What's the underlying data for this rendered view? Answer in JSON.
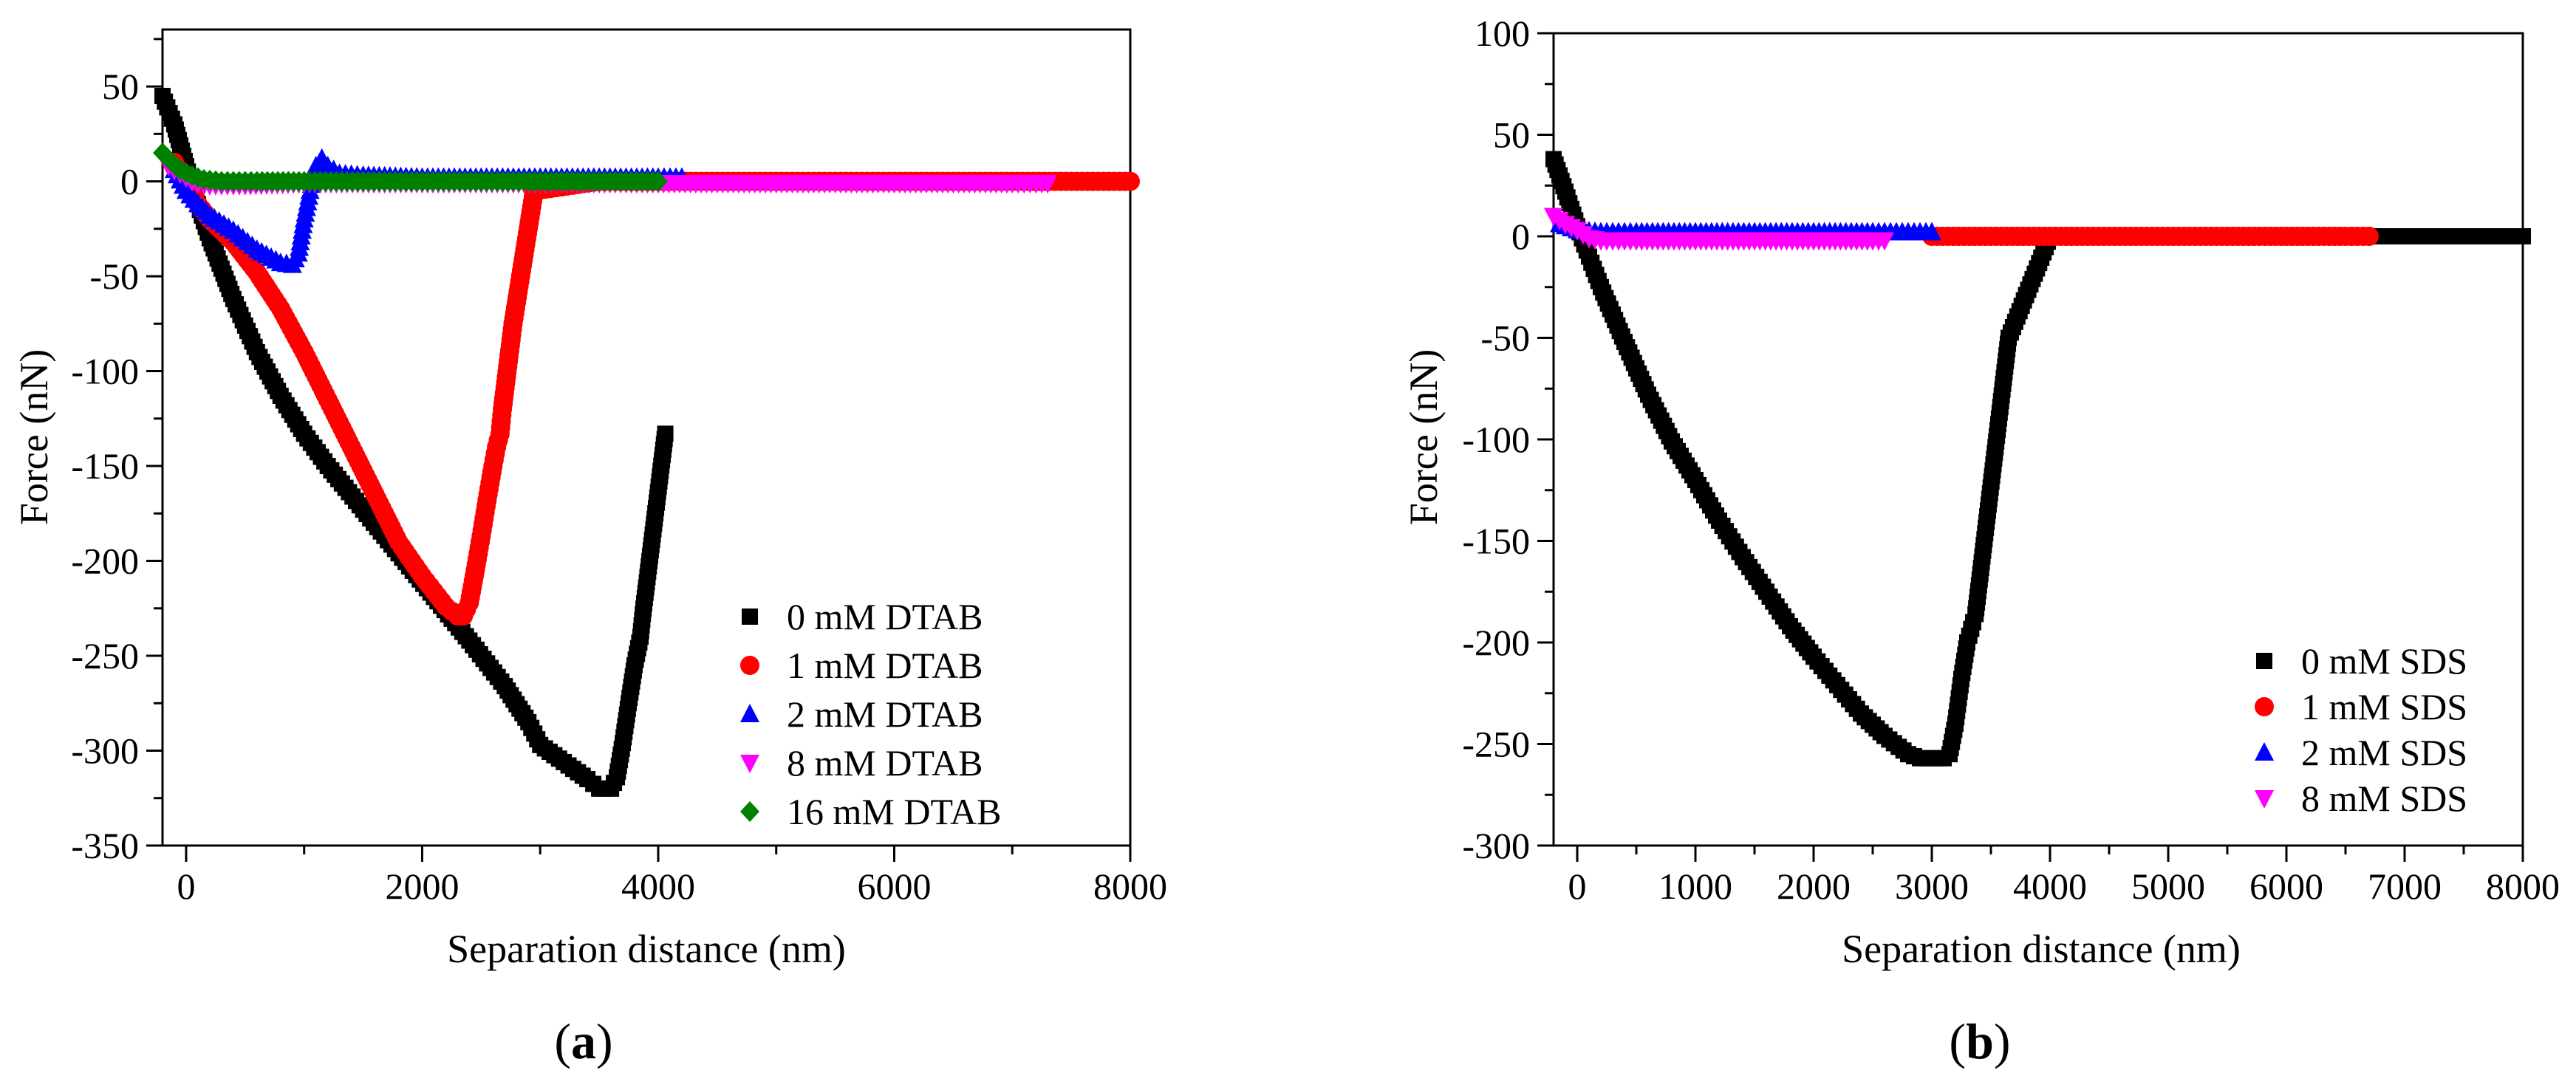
{
  "chart_data": [
    {
      "panel_label": "a",
      "type": "scatter",
      "xlabel": "Separation distance (nm)",
      "ylabel": "Force (nN)",
      "xlim": [
        -200,
        8000
      ],
      "ylim": [
        -350,
        80
      ],
      "xticks": [
        0,
        2000,
        4000,
        6000,
        8000
      ],
      "xtick_labels": [
        "0",
        "2000",
        "4000",
        "6000",
        "8000"
      ],
      "yticks": [
        50,
        0,
        -50,
        -100,
        -150,
        -200,
        -250,
        -300,
        -350
      ],
      "ytick_labels": [
        "50",
        "0",
        "-50",
        "-100",
        "-150",
        "-200",
        "-250",
        "-300",
        "-350"
      ],
      "legend_position": "bottom-right",
      "series": [
        {
          "name": "0 mM DTAB",
          "color": "#000000",
          "marker": "square",
          "points": [
            [
              -200,
              45
            ],
            [
              -100,
              30
            ],
            [
              0,
              8
            ],
            [
              100,
              -12
            ],
            [
              200,
              -30
            ],
            [
              400,
              -62
            ],
            [
              600,
              -90
            ],
            [
              800,
              -113
            ],
            [
              1000,
              -133
            ],
            [
              1200,
              -150
            ],
            [
              1500,
              -173
            ],
            [
              1800,
              -196
            ],
            [
              2100,
              -219
            ],
            [
              2400,
              -242
            ],
            [
              2700,
              -266
            ],
            [
              2900,
              -285
            ],
            [
              3000,
              -297
            ],
            [
              3200,
              -306
            ],
            [
              3400,
              -315
            ],
            [
              3500,
              -320
            ],
            [
              3600,
              -320
            ],
            [
              3650,
              -314
            ],
            [
              3700,
              -296
            ],
            [
              3750,
              -275
            ],
            [
              3800,
              -255
            ],
            [
              3850,
              -240
            ],
            [
              3870,
              -228
            ],
            [
              4060,
              -133
            ]
          ]
        },
        {
          "name": "1 mM DTAB",
          "color": "#ff0000",
          "marker": "circle",
          "points": [
            [
              -100,
              10
            ],
            [
              0,
              -2
            ],
            [
              100,
              -12
            ],
            [
              200,
              -20
            ],
            [
              400,
              -32
            ],
            [
              600,
              -48
            ],
            [
              800,
              -67
            ],
            [
              1000,
              -90
            ],
            [
              1200,
              -115
            ],
            [
              1400,
              -140
            ],
            [
              1600,
              -165
            ],
            [
              1800,
              -190
            ],
            [
              2000,
              -208
            ],
            [
              2100,
              -216
            ],
            [
              2200,
              -224
            ],
            [
              2300,
              -229
            ],
            [
              2350,
              -229
            ],
            [
              2400,
              -222
            ],
            [
              2450,
              -205
            ],
            [
              2500,
              -187
            ],
            [
              2550,
              -168
            ],
            [
              2600,
              -150
            ],
            [
              2630,
              -140
            ],
            [
              2660,
              -133
            ],
            [
              2680,
              -120
            ],
            [
              2770,
              -75
            ],
            [
              2950,
              -5
            ],
            [
              3500,
              0
            ],
            [
              4000,
              0
            ],
            [
              5000,
              0
            ],
            [
              6000,
              0
            ],
            [
              7000,
              0
            ],
            [
              7500,
              0
            ],
            [
              8000,
              0
            ]
          ]
        },
        {
          "name": "2 mM DTAB",
          "color": "#0000ff",
          "marker": "triangle-up",
          "points": [
            [
              -100,
              6
            ],
            [
              0,
              -5
            ],
            [
              100,
              -12
            ],
            [
              200,
              -18
            ],
            [
              400,
              -26
            ],
            [
              600,
              -36
            ],
            [
              800,
              -43
            ],
            [
              900,
              -44
            ],
            [
              950,
              -38
            ],
            [
              1000,
              -20
            ],
            [
              1050,
              -5
            ],
            [
              1100,
              8
            ],
            [
              1150,
              12
            ],
            [
              1200,
              8
            ],
            [
              1300,
              4
            ],
            [
              1500,
              3
            ],
            [
              2000,
              2
            ],
            [
              2500,
              2
            ],
            [
              3000,
              2
            ],
            [
              3500,
              2
            ],
            [
              4000,
              2
            ],
            [
              4200,
              2
            ]
          ]
        },
        {
          "name": "8 mM DTAB",
          "color": "#ff00ff",
          "marker": "triangle-down",
          "points": [
            [
              -150,
              8
            ],
            [
              -50,
              4
            ],
            [
              50,
              0
            ],
            [
              150,
              -2
            ],
            [
              300,
              -2
            ],
            [
              500,
              -2
            ],
            [
              1000,
              -1
            ],
            [
              2000,
              -1
            ],
            [
              3000,
              -1
            ],
            [
              4000,
              -1
            ],
            [
              5000,
              -1
            ],
            [
              6000,
              -1
            ],
            [
              7000,
              -1
            ],
            [
              7300,
              -1
            ]
          ]
        },
        {
          "name": "16 mM DTAB",
          "color": "#008000",
          "marker": "diamond",
          "points": [
            [
              -200,
              15
            ],
            [
              -120,
              10
            ],
            [
              -50,
              6
            ],
            [
              50,
              3
            ],
            [
              150,
              1
            ],
            [
              300,
              0
            ],
            [
              600,
              0
            ],
            [
              1000,
              0
            ],
            [
              1500,
              0
            ],
            [
              2000,
              0
            ],
            [
              2500,
              0
            ],
            [
              3000,
              0
            ],
            [
              3500,
              0
            ],
            [
              4000,
              0
            ]
          ]
        }
      ]
    },
    {
      "panel_label": "b",
      "type": "scatter",
      "xlabel": "Separation distance (nm)",
      "ylabel": "Force (nN)",
      "xlim": [
        -200,
        8000
      ],
      "ylim": [
        -300,
        100
      ],
      "xticks": [
        0,
        1000,
        2000,
        3000,
        4000,
        5000,
        6000,
        7000,
        8000
      ],
      "xtick_labels": [
        "0",
        "1000",
        "2000",
        "3000",
        "4000",
        "5000",
        "6000",
        "7000",
        "8000"
      ],
      "yticks": [
        100,
        50,
        0,
        -50,
        -100,
        -150,
        -200,
        -250,
        -300
      ],
      "ytick_labels": [
        "100",
        "50",
        "0",
        "-50",
        "-100",
        "-150",
        "-200",
        "-250",
        "-300"
      ],
      "legend_position": "bottom-right",
      "series": [
        {
          "name": "0 mM SDS",
          "color": "#000000",
          "marker": "square",
          "points": [
            [
              -200,
              38
            ],
            [
              -100,
              22
            ],
            [
              0,
              5
            ],
            [
              100,
              -10
            ],
            [
              200,
              -25
            ],
            [
              400,
              -52
            ],
            [
              600,
              -78
            ],
            [
              800,
              -101
            ],
            [
              1000,
              -120
            ],
            [
              1200,
              -140
            ],
            [
              1400,
              -158
            ],
            [
              1600,
              -175
            ],
            [
              1800,
              -192
            ],
            [
              2000,
              -207
            ],
            [
              2200,
              -221
            ],
            [
              2400,
              -235
            ],
            [
              2600,
              -246
            ],
            [
              2800,
              -255
            ],
            [
              2900,
              -257
            ],
            [
              3000,
              -257
            ],
            [
              3100,
              -257
            ],
            [
              3150,
              -255
            ],
            [
              3200,
              -240
            ],
            [
              3250,
              -218
            ],
            [
              3300,
              -200
            ],
            [
              3350,
              -190
            ],
            [
              3370,
              -186
            ],
            [
              3650,
              -50
            ],
            [
              4000,
              0
            ],
            [
              5000,
              0
            ],
            [
              6000,
              0
            ],
            [
              7000,
              0
            ],
            [
              8000,
              0
            ]
          ]
        },
        {
          "name": "1 mM SDS",
          "color": "#ff0000",
          "marker": "circle",
          "points": [
            [
              3000,
              0
            ],
            [
              3500,
              0
            ],
            [
              4000,
              0
            ],
            [
              4500,
              0
            ],
            [
              5000,
              0
            ],
            [
              5500,
              0
            ],
            [
              6000,
              0
            ],
            [
              6500,
              0
            ],
            [
              6700,
              0
            ]
          ]
        },
        {
          "name": "2 mM SDS",
          "color": "#0000ff",
          "marker": "triangle-up",
          "points": [
            [
              -150,
              6
            ],
            [
              0,
              3
            ],
            [
              200,
              2
            ],
            [
              500,
              2
            ],
            [
              1000,
              2
            ],
            [
              1500,
              2
            ],
            [
              2000,
              2
            ],
            [
              2500,
              2
            ],
            [
              2800,
              2
            ],
            [
              3000,
              2
            ]
          ]
        },
        {
          "name": "8 mM SDS",
          "color": "#ff00ff",
          "marker": "triangle-down",
          "points": [
            [
              -200,
              10
            ],
            [
              -100,
              6
            ],
            [
              0,
              3
            ],
            [
              100,
              -1
            ],
            [
              200,
              -2
            ],
            [
              500,
              -2
            ],
            [
              1000,
              -2
            ],
            [
              1500,
              -2
            ],
            [
              2000,
              -2
            ],
            [
              2500,
              -2
            ],
            [
              2600,
              -2
            ]
          ]
        }
      ]
    }
  ]
}
